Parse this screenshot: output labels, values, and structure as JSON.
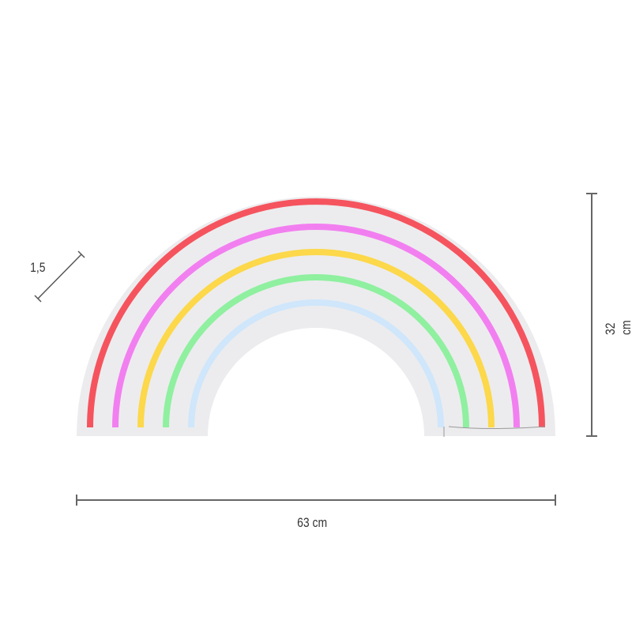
{
  "dimensions": {
    "width_label": "63 cm",
    "height_label": "32 cm",
    "depth_label": "1,5"
  },
  "colors": {
    "backing": "#ececee",
    "dimension_line": "#666666",
    "tubes": [
      "#f5545e",
      "#f27ff0",
      "#fcd84a",
      "#8ff0a0",
      "#cfe6fb"
    ]
  },
  "tubes": [
    "red",
    "pink",
    "yellow",
    "green",
    "light-blue"
  ]
}
